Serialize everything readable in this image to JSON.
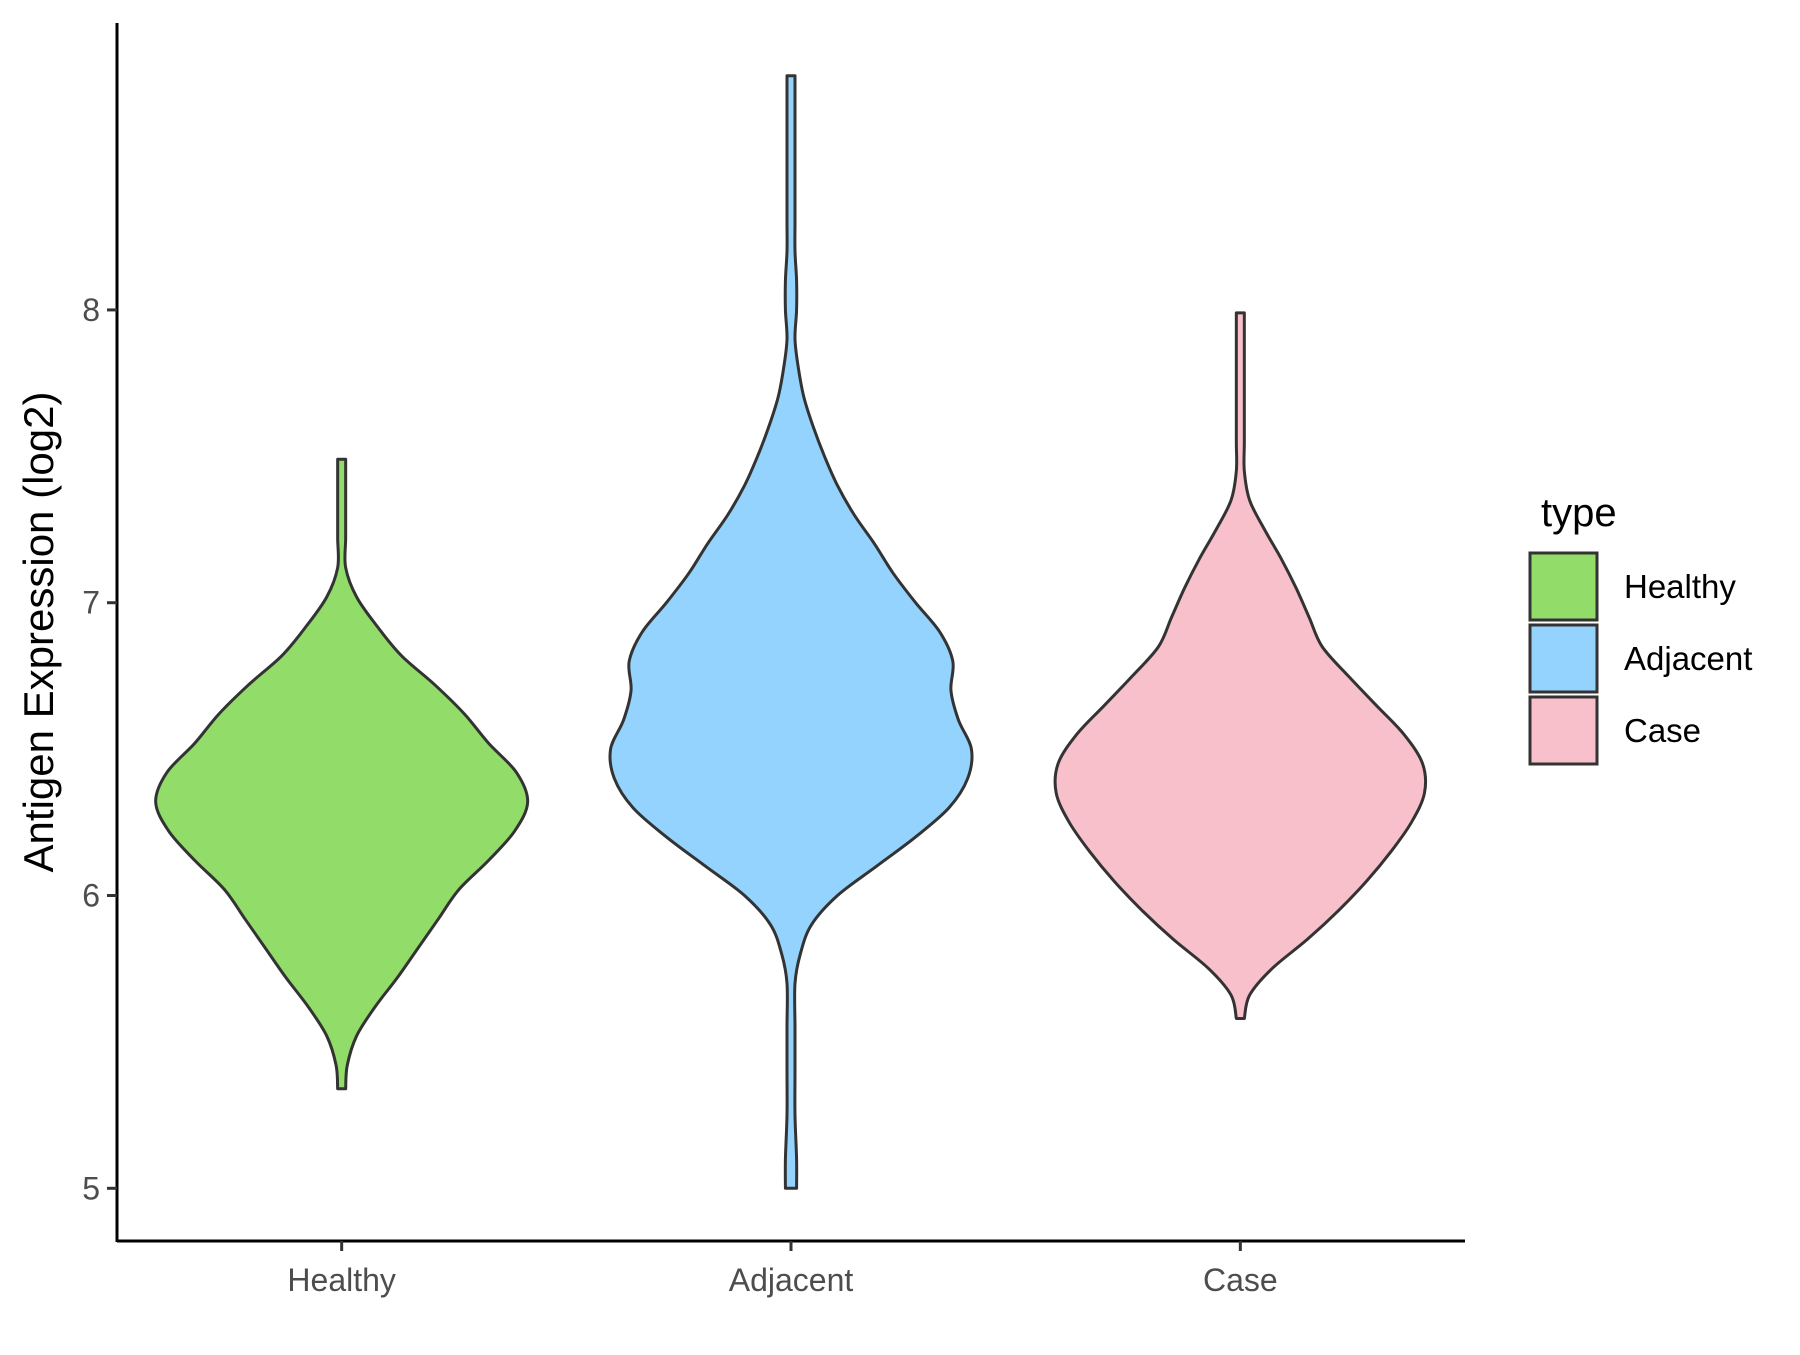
{
  "chart_data": {
    "type": "violin",
    "title": "",
    "xlabel": "",
    "ylabel": "Antigen Expression (log2)",
    "categories": [
      "Healthy",
      "Adjacent",
      "Case"
    ],
    "y_ticks": [
      5,
      6,
      7,
      8
    ],
    "ylim": [
      4.82,
      8.98
    ],
    "grid": false,
    "legend": {
      "title": "type",
      "placement": "right",
      "entries": [
        "Healthy",
        "Adjacent",
        "Case"
      ]
    },
    "colors": {
      "Healthy": "#92dc6a",
      "Adjacent": "#94d3fd",
      "Case": "#f7c0cb",
      "outline": "#333333"
    },
    "series": [
      {
        "category": "Healthy",
        "min": 5.34,
        "max": 7.49,
        "density_profile": [
          [
            5.34,
            0.02
          ],
          [
            5.42,
            0.03
          ],
          [
            5.52,
            0.08
          ],
          [
            5.62,
            0.18
          ],
          [
            5.72,
            0.3
          ],
          [
            5.82,
            0.41
          ],
          [
            5.92,
            0.52
          ],
          [
            6.02,
            0.63
          ],
          [
            6.12,
            0.79
          ],
          [
            6.22,
            0.93
          ],
          [
            6.32,
            1.0
          ],
          [
            6.42,
            0.94
          ],
          [
            6.52,
            0.79
          ],
          [
            6.62,
            0.66
          ],
          [
            6.72,
            0.5
          ],
          [
            6.82,
            0.32
          ],
          [
            6.92,
            0.19
          ],
          [
            7.02,
            0.08
          ],
          [
            7.12,
            0.02
          ],
          [
            7.22,
            0.01
          ],
          [
            7.32,
            0.02
          ],
          [
            7.42,
            0.02
          ],
          [
            7.49,
            0.02
          ]
        ]
      },
      {
        "category": "Adjacent",
        "min": 5.0,
        "max": 8.8,
        "density_profile": [
          [
            5.0,
            0.03
          ],
          [
            5.1,
            0.03
          ],
          [
            5.25,
            0.02
          ],
          [
            5.4,
            0.01
          ],
          [
            5.55,
            0.0
          ],
          [
            5.7,
            0.02
          ],
          [
            5.8,
            0.05
          ],
          [
            5.9,
            0.11
          ],
          [
            6.0,
            0.25
          ],
          [
            6.1,
            0.46
          ],
          [
            6.2,
            0.67
          ],
          [
            6.3,
            0.85
          ],
          [
            6.4,
            0.95
          ],
          [
            6.5,
            0.97
          ],
          [
            6.6,
            0.9
          ],
          [
            6.7,
            0.86
          ],
          [
            6.8,
            0.87
          ],
          [
            6.9,
            0.8
          ],
          [
            7.0,
            0.67
          ],
          [
            7.1,
            0.55
          ],
          [
            7.2,
            0.45
          ],
          [
            7.3,
            0.34
          ],
          [
            7.4,
            0.25
          ],
          [
            7.5,
            0.18
          ],
          [
            7.6,
            0.12
          ],
          [
            7.7,
            0.07
          ],
          [
            7.8,
            0.04
          ],
          [
            7.9,
            0.02
          ],
          [
            8.0,
            0.03
          ],
          [
            8.1,
            0.03
          ],
          [
            8.2,
            0.02
          ],
          [
            8.3,
            0.01
          ],
          [
            8.4,
            0.0
          ],
          [
            8.55,
            0.0
          ],
          [
            8.7,
            0.01
          ],
          [
            8.8,
            0.02
          ]
        ]
      },
      {
        "category": "Case",
        "min": 5.58,
        "max": 7.99,
        "density_profile": [
          [
            5.58,
            0.01
          ],
          [
            5.66,
            0.05
          ],
          [
            5.75,
            0.17
          ],
          [
            5.85,
            0.36
          ],
          [
            5.95,
            0.53
          ],
          [
            6.05,
            0.68
          ],
          [
            6.15,
            0.81
          ],
          [
            6.25,
            0.92
          ],
          [
            6.35,
            0.99
          ],
          [
            6.45,
            0.98
          ],
          [
            6.55,
            0.88
          ],
          [
            6.65,
            0.73
          ],
          [
            6.75,
            0.58
          ],
          [
            6.85,
            0.44
          ],
          [
            6.95,
            0.37
          ],
          [
            7.05,
            0.3
          ],
          [
            7.15,
            0.22
          ],
          [
            7.25,
            0.13
          ],
          [
            7.35,
            0.05
          ],
          [
            7.45,
            0.01
          ],
          [
            7.55,
            0.0
          ],
          [
            7.7,
            0.0
          ],
          [
            7.85,
            0.01
          ],
          [
            7.99,
            0.02
          ]
        ]
      }
    ]
  }
}
